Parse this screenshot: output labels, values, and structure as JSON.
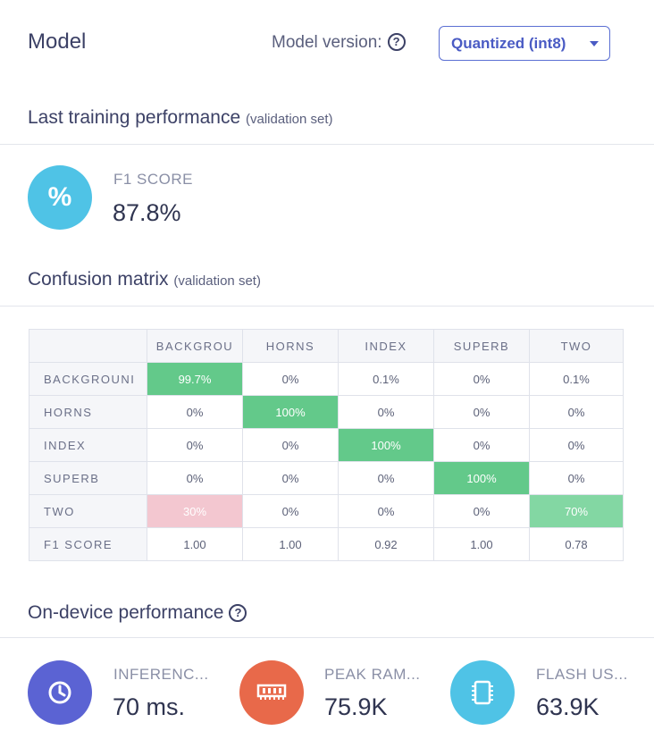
{
  "header": {
    "title": "Model",
    "version_label": "Model version:",
    "version_selected": "Quantized (int8)"
  },
  "training": {
    "title": "Last training performance",
    "subtitle": "(validation set)",
    "metric_label": "F1 SCORE",
    "metric_value": "87.8%",
    "icon_symbol": "%"
  },
  "confusion": {
    "title": "Confusion matrix",
    "subtitle": "(validation set)",
    "columns": [
      "BACKGROU",
      "HORNS",
      "INDEX",
      "SUPERB",
      "TWO"
    ],
    "rows": [
      {
        "label": "BACKGROUNI",
        "cells": [
          "99.7%",
          "0%",
          "0.1%",
          "0%",
          "0.1%"
        ]
      },
      {
        "label": "HORNS",
        "cells": [
          "0%",
          "100%",
          "0%",
          "0%",
          "0%"
        ]
      },
      {
        "label": "INDEX",
        "cells": [
          "0%",
          "0%",
          "100%",
          "0%",
          "0%"
        ]
      },
      {
        "label": "SUPERB",
        "cells": [
          "0%",
          "0%",
          "0%",
          "100%",
          "0%"
        ]
      },
      {
        "label": "TWO",
        "cells": [
          "30%",
          "0%",
          "0%",
          "0%",
          "70%"
        ]
      },
      {
        "label": "F1 SCORE",
        "cells": [
          "1.00",
          "1.00",
          "0.92",
          "1.00",
          "0.78"
        ]
      }
    ]
  },
  "device": {
    "title": "On-device performance",
    "metrics": [
      {
        "label": "INFERENC...",
        "value": "70 ms.",
        "icon": "clock-icon",
        "color": "#5b63d3"
      },
      {
        "label": "PEAK RAM...",
        "value": "75.9K",
        "icon": "ram-icon",
        "color": "#e8694a"
      },
      {
        "label": "FLASH US...",
        "value": "63.9K",
        "icon": "chip-icon",
        "color": "#4fc3e6"
      }
    ]
  },
  "colors": {
    "accent": "#5b6fd3",
    "f1_icon": "#4fc3e6",
    "diag_green": "#63c98a",
    "light_green": "#83d7a3",
    "error_pink": "#f3c7d0"
  }
}
